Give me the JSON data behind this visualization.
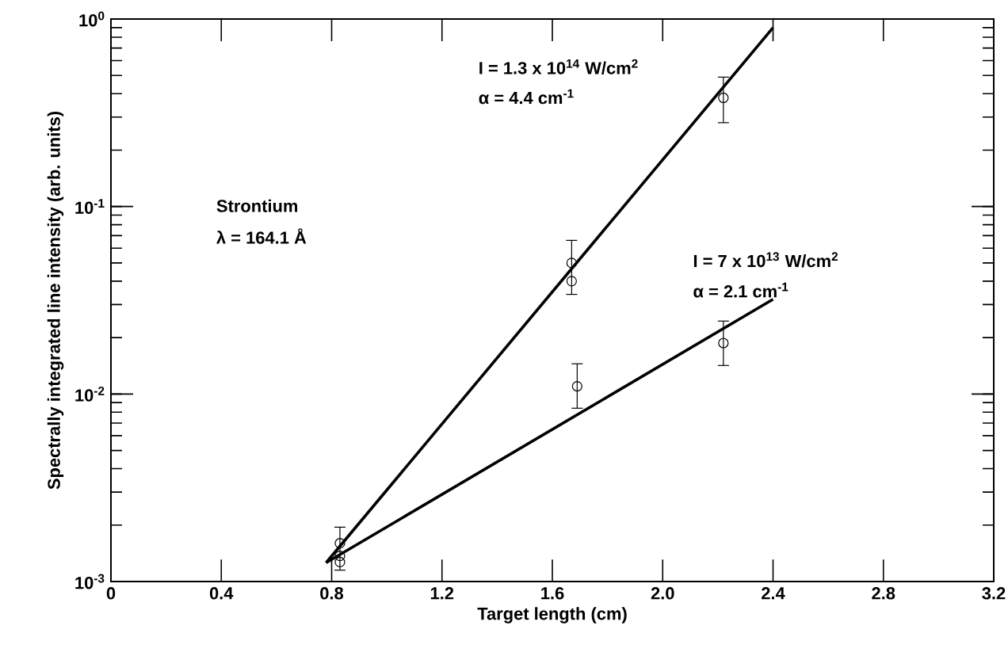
{
  "chart_data": {
    "type": "scatter",
    "xlabel": "Target length (cm)",
    "ylabel": "Spectrally integrated line intensity (arb. units)",
    "log": "y",
    "grid": false,
    "xlim": [
      0,
      3.2
    ],
    "ylim": [
      0.001,
      1
    ],
    "xticks": [
      0,
      0.4,
      0.8,
      1.2,
      1.6,
      {
        "value": 2,
        "label": "2.0"
      },
      2.4,
      2.8,
      3.2
    ],
    "yticks": [
      {
        "value": 0.001,
        "label": "10$^{-3}$"
      },
      {
        "value": 0.01,
        "label": "10$^{-2}$"
      },
      {
        "value": 0.1,
        "label": "10$^{-1}$"
      },
      {
        "value": 1,
        "label": "10$^{0}$"
      }
    ],
    "annotations": [
      "I = 1.3 x 10$^{14}$ W/cm$^{2}$",
      "α = 4.4 cm$^{-1}$",
      "Strontium",
      "λ = 164.1 Å",
      "I = 7 x 10$^{13}$ W/cm$^{2}$",
      "α = 2.1 cm$^{-1}$"
    ],
    "series": [
      {
        "type": "line",
        "color": "#000000",
        "marker": "none",
        "x": [
          0.78,
          2.4
        ],
        "values": [
          0.00126,
          0.9
        ]
      },
      {
        "type": "line",
        "color": "#000000",
        "marker": "none",
        "x": [
          0.78,
          2.4
        ],
        "values": [
          0.00126,
          0.032
        ]
      },
      {
        "color": "#000000",
        "marker": "circle",
        "x": [
          0.83,
          0.83,
          0.83,
          1.67,
          1.67,
          1.69,
          2.22,
          2.22
        ],
        "values": [
          0.0016,
          0.00137,
          0.00127,
          0.05,
          0.04,
          0.011,
          0.38,
          0.0187
        ],
        "errors": [
          [
            0.00115,
            0.00195
          ],
          null,
          null,
          [
            0.034,
            0.066
          ],
          null,
          [
            0.0084,
            0.0145
          ],
          [
            0.28,
            0.49
          ],
          [
            0.0142,
            0.0245
          ]
        ]
      }
    ]
  }
}
